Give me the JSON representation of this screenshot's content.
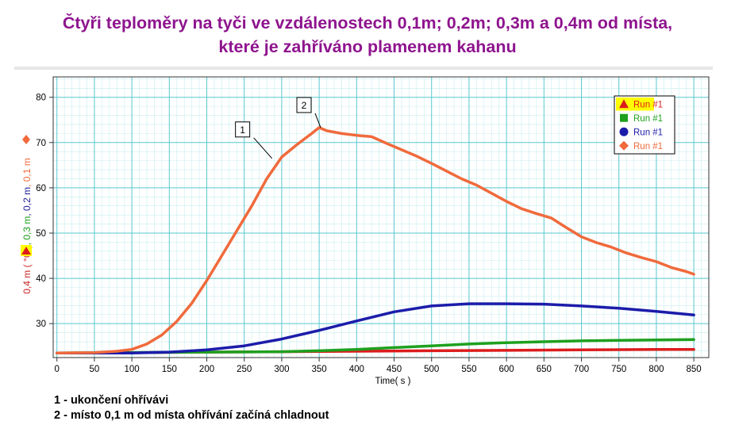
{
  "title_lines": [
    "Čtyři teploměry na tyči ve vzdálenostech 0,1m; 0,2m; 0,3m a 0,4m od místa,",
    "které je zahříváno plamenem kahanu"
  ],
  "notes": [
    "1 - ukončení ohřívávi",
    "2 - místo 0,1 m od místa ohřívání začíná chladnout"
  ],
  "chart_data": {
    "type": "line",
    "title": "",
    "xlabel": "Time( s )",
    "ylabel_parts": [
      {
        "text": "0,4 m ( °C )",
        "color": "#cc2020",
        "marker": "triangle"
      },
      {
        "text": "0,3 m",
        "color": "#1a9a1a"
      },
      {
        "text": "0,2 m",
        "color": "#1a1a99"
      },
      {
        "text": "0,1 m",
        "color": "#f06a3c",
        "marker": "diamond"
      }
    ],
    "xlim": [
      -5,
      870
    ],
    "ylim": [
      22.5,
      84.5
    ],
    "xticks": [
      0,
      50,
      100,
      150,
      200,
      250,
      300,
      350,
      400,
      450,
      500,
      550,
      600,
      650,
      700,
      750,
      800,
      850
    ],
    "yticks": [
      30,
      40,
      50,
      60,
      70,
      80
    ],
    "grid": true,
    "legend_position": "top-right",
    "series": [
      {
        "name": "Run #1",
        "marker": "triangle",
        "color": "#dd1c1c",
        "x": [
          0,
          100,
          200,
          300,
          400,
          500,
          600,
          700,
          800,
          850
        ],
        "y": [
          23.5,
          23.6,
          23.7,
          23.8,
          23.9,
          24.0,
          24.1,
          24.2,
          24.3,
          24.3
        ]
      },
      {
        "name": "Run #1",
        "marker": "square",
        "color": "#1ea01e",
        "x": [
          0,
          100,
          200,
          300,
          350,
          400,
          450,
          500,
          550,
          600,
          650,
          700,
          750,
          800,
          850
        ],
        "y": [
          23.5,
          23.6,
          23.7,
          23.8,
          24.0,
          24.3,
          24.7,
          25.1,
          25.5,
          25.8,
          26.0,
          26.2,
          26.3,
          26.4,
          26.5
        ]
      },
      {
        "name": "Run #1",
        "marker": "circle",
        "color": "#1c1caa",
        "x": [
          0,
          100,
          150,
          200,
          250,
          300,
          350,
          400,
          450,
          500,
          550,
          600,
          650,
          700,
          750,
          800,
          850
        ],
        "y": [
          23.5,
          23.5,
          23.7,
          24.2,
          25.1,
          26.6,
          28.5,
          30.6,
          32.6,
          33.9,
          34.4,
          34.4,
          34.3,
          33.9,
          33.4,
          32.7,
          31.9
        ]
      },
      {
        "name": "Run #1",
        "marker": "diamond",
        "color": "#f06a3c",
        "x": [
          0,
          50,
          80,
          100,
          120,
          140,
          160,
          180,
          200,
          220,
          240,
          260,
          280,
          300,
          320,
          340,
          350,
          360,
          380,
          400,
          420,
          440,
          460,
          480,
          500,
          520,
          540,
          560,
          580,
          600,
          620,
          640,
          660,
          680,
          700,
          720,
          740,
          760,
          780,
          800,
          820,
          840,
          850
        ],
        "y": [
          23.5,
          23.6,
          23.9,
          24.3,
          25.5,
          27.5,
          30.5,
          34.5,
          39.5,
          45.0,
          50.5,
          56.0,
          62.0,
          66.8,
          69.5,
          72.0,
          73.3,
          72.6,
          72.0,
          71.6,
          71.3,
          69.8,
          68.4,
          67.0,
          65.4,
          63.7,
          62.0,
          60.6,
          58.8,
          57.0,
          55.4,
          54.3,
          53.3,
          51.2,
          49.2,
          47.9,
          46.9,
          45.6,
          44.6,
          43.7,
          42.4,
          41.5,
          40.9
        ]
      }
    ],
    "annotations": [
      {
        "label": "1",
        "x": 287,
        "y": 66.5
      },
      {
        "label": "2",
        "x": 352,
        "y": 73.3
      }
    ]
  }
}
